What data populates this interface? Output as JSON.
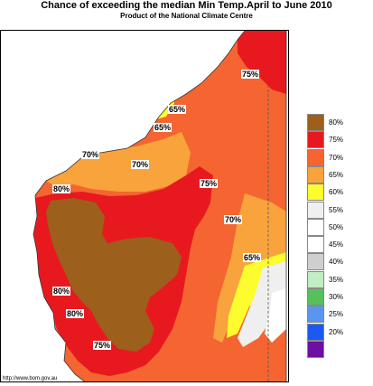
{
  "header": {
    "title": "Chance of exceeding the median Min Temp.April to June 2010",
    "subtitle": "Product of the National Climate Centre"
  },
  "footer": {
    "url": "http://www.bom.gov.au"
  },
  "map_labels": [
    "75%",
    "65%",
    "65%",
    "70%",
    "70%",
    "75%",
    "80%",
    "70%",
    "65%",
    "80%",
    "80%",
    "75%"
  ],
  "legend": {
    "items": [
      {
        "label": "80%",
        "color": "#9c5f1c"
      },
      {
        "label": "75%",
        "color": "#e8191e"
      },
      {
        "label": "70%",
        "color": "#f46531"
      },
      {
        "label": "65%",
        "color": "#f9a33c"
      },
      {
        "label": "60%",
        "color": "#fcfc2e"
      },
      {
        "label": "55%",
        "color": "#efefef"
      },
      {
        "label": "50%",
        "color": "#ffffff"
      },
      {
        "label": "45%",
        "color": "#ffffff"
      },
      {
        "label": "40%",
        "color": "#cfcfcf"
      },
      {
        "label": "35%",
        "color": "#c2ecc2"
      },
      {
        "label": "30%",
        "color": "#57c05d"
      },
      {
        "label": "25%",
        "color": "#5a96f0"
      },
      {
        "label": "20%",
        "color": "#1a5af2"
      },
      {
        "label": "",
        "color": "#6b10a0"
      }
    ]
  }
}
